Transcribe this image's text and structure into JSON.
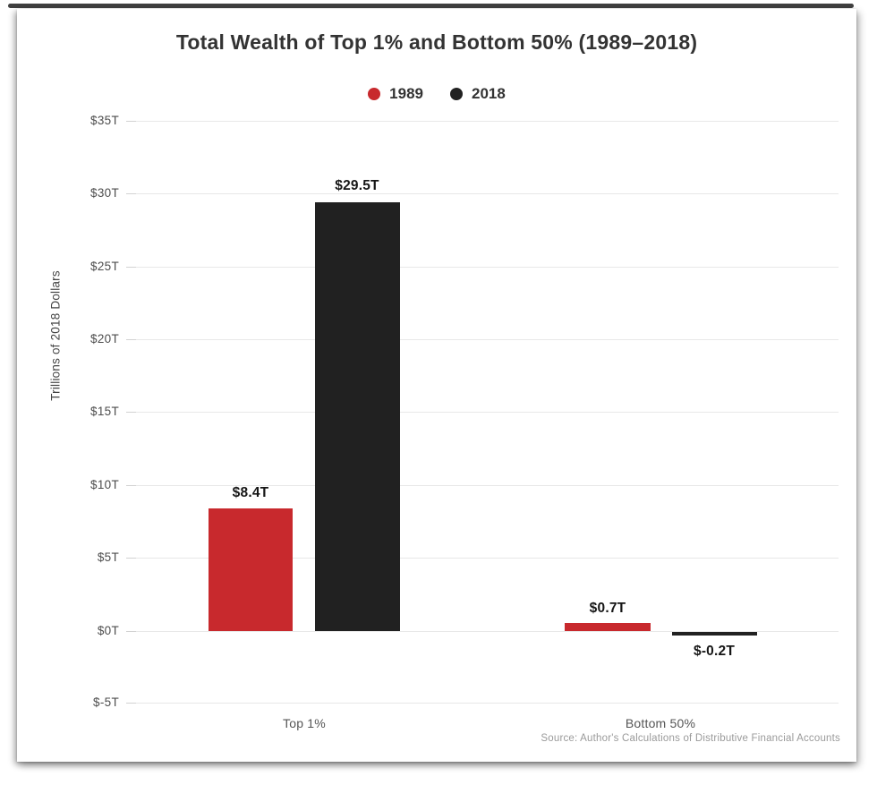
{
  "chart_data": {
    "type": "bar",
    "title": "Total Wealth of Top 1% and Bottom 50% (1989–2018)",
    "categories": [
      "Top 1%",
      "Bottom 50%"
    ],
    "series": [
      {
        "name": "1989",
        "color": "#c8292d",
        "values": [
          8.4,
          0.7
        ],
        "labels": [
          "$8.4T",
          "$0.7T"
        ]
      },
      {
        "name": "2018",
        "color": "#212121",
        "values": [
          29.5,
          -0.2
        ],
        "labels": [
          "$29.5T",
          "$-0.2T"
        ]
      }
    ],
    "ylabel": "Trillions of 2018 Dollars",
    "yticks": [
      "$35T",
      "$30T",
      "$25T",
      "$20T",
      "$15T",
      "$10T",
      "$5T",
      "$0T",
      "$-5T"
    ],
    "ylim": [
      -5,
      35
    ],
    "grid": true,
    "legend_position": "top-center",
    "source": "Source: Author's Calculations of Distributive Financial Accounts"
  }
}
